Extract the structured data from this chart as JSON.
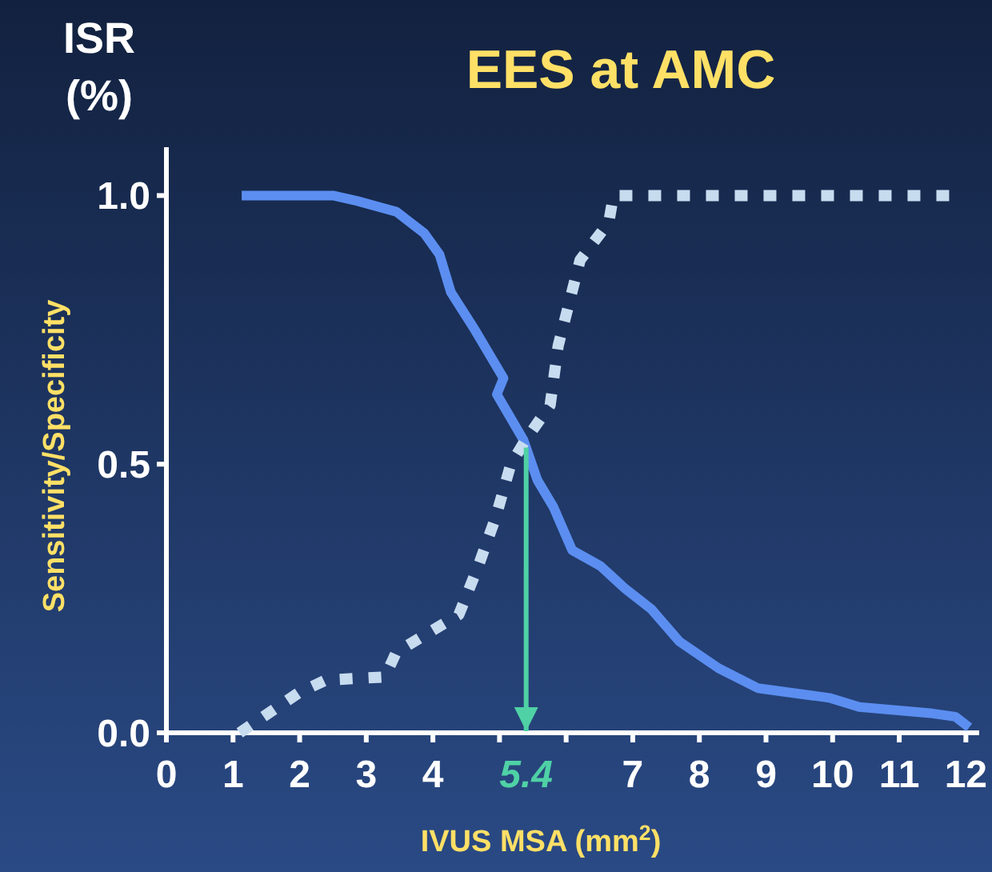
{
  "chart_data": {
    "type": "line",
    "title": "EES at AMC",
    "xlabel": "IVUS MSA (mm$^{2}$)",
    "ylabel": "Sensitivity/Specificity",
    "annotations": [
      "ISR\n(%)"
    ],
    "xlim": [
      0,
      12.2
    ],
    "xticks": [
      0,
      1,
      2,
      3,
      4,
      {
        "value": 5,
        "label": null
      },
      {
        "value": 6,
        "label": null
      },
      7,
      8,
      9,
      10,
      11,
      12
    ],
    "ylim": [
      0,
      1.09
    ],
    "yticks": [
      {
        "value": 0,
        "label": "0.0"
      },
      {
        "value": 0.5,
        "label": "0.5"
      },
      {
        "value": 1,
        "label": "1.0"
      }
    ],
    "ref_lines": [
      {
        "axis": "x",
        "value": 5.4,
        "label": "5.4",
        "color": "#4fd1a5"
      }
    ],
    "series": [
      {
        "color": "#5b8ef0",
        "line_style": "solid",
        "x": [
          1.13,
          2.5,
          2.86,
          3.45,
          3.87,
          4.1,
          4.27,
          4.63,
          5.06,
          4.96,
          5.36,
          5.57,
          5.81,
          6.09,
          6.52,
          6.87,
          7.28,
          7.7,
          8.29,
          8.88,
          9.95,
          10.4,
          11.5,
          11.84,
          12.05
        ],
        "values": [
          1.0,
          1.0,
          0.99,
          0.97,
          0.93,
          0.89,
          0.82,
          0.75,
          0.66,
          0.63,
          0.545,
          0.47,
          0.42,
          0.34,
          0.31,
          0.27,
          0.23,
          0.17,
          0.12,
          0.083,
          0.065,
          0.048,
          0.036,
          0.03,
          0.01
        ]
      },
      {
        "color": "#c8dcf0",
        "line_style": "dotted",
        "x": [
          1.1,
          1.98,
          2.39,
          3.28,
          3.45,
          4.39,
          4.68,
          4.94,
          5.17,
          5.39,
          5.76,
          5.88,
          6.21,
          6.64,
          6.71,
          11.88
        ],
        "values": [
          0,
          0.074,
          0.098,
          0.104,
          0.15,
          0.22,
          0.31,
          0.4,
          0.5,
          0.545,
          0.61,
          0.72,
          0.88,
          0.95,
          1.0,
          1.0
        ]
      }
    ]
  }
}
